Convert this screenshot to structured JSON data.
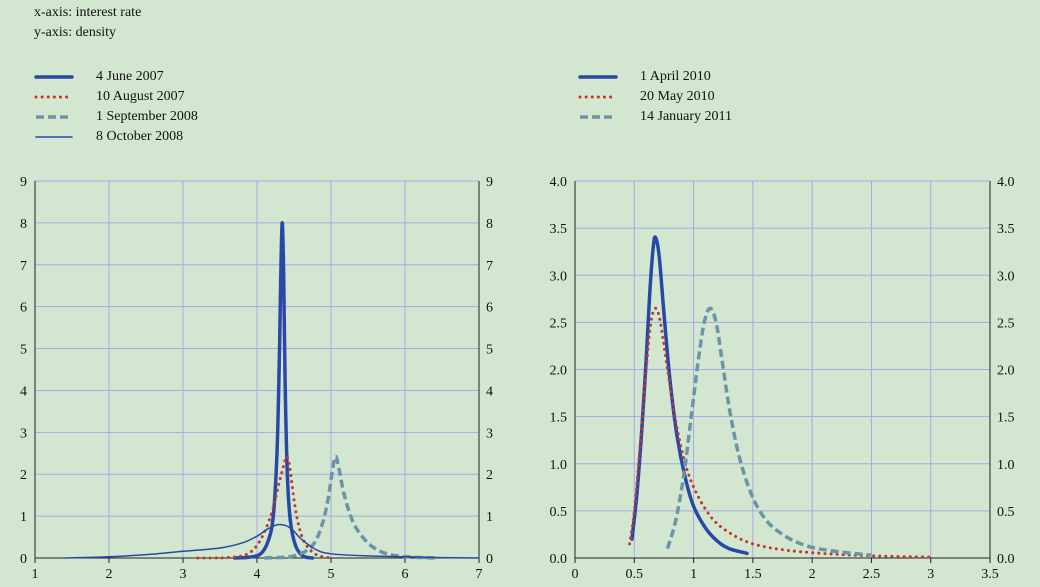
{
  "notes": {
    "x_axis": "x-axis: interest rate",
    "y_axis": "y-axis: density"
  },
  "colors": {
    "background": "#d3e7d0",
    "grid": "#a8a8e8",
    "solid_blue": "#2848a8",
    "dotted_red": "#c0392b",
    "dashed_teal": "#6a94a8"
  },
  "chart_data": [
    {
      "type": "line",
      "title": "",
      "xlabel": "interest rate",
      "ylabel": "density",
      "xlim": [
        1,
        7
      ],
      "ylim": [
        0,
        9
      ],
      "x_ticks": [
        1,
        2,
        3,
        4,
        5,
        6,
        7
      ],
      "y_ticks": [
        0,
        1,
        2,
        3,
        4,
        5,
        6,
        7,
        8,
        9
      ],
      "y_tick_labels": [
        "0",
        "1",
        "2",
        "3",
        "4",
        "5",
        "6",
        "7",
        "8",
        "9"
      ],
      "grid": true,
      "legend_position": "top-left",
      "series": [
        {
          "name": "4 June 2007",
          "style": "solid-thick",
          "color": "#2848a8",
          "points": [
            [
              3.7,
              0
            ],
            [
              3.9,
              0.02
            ],
            [
              4.05,
              0.1
            ],
            [
              4.15,
              0.4
            ],
            [
              4.22,
              1.0
            ],
            [
              4.27,
              2.5
            ],
            [
              4.3,
              4.6
            ],
            [
              4.32,
              6.6
            ],
            [
              4.34,
              8.0
            ],
            [
              4.36,
              6.8
            ],
            [
              4.38,
              4.2
            ],
            [
              4.41,
              2.0
            ],
            [
              4.45,
              0.9
            ],
            [
              4.52,
              0.3
            ],
            [
              4.62,
              0.05
            ],
            [
              4.75,
              0
            ]
          ]
        },
        {
          "name": "10 August 2007",
          "style": "dotted",
          "color": "#c0392b",
          "points": [
            [
              3.2,
              0
            ],
            [
              3.6,
              0.01
            ],
            [
              3.85,
              0.08
            ],
            [
              4.0,
              0.3
            ],
            [
              4.12,
              0.7
            ],
            [
              4.22,
              1.2
            ],
            [
              4.3,
              1.8
            ],
            [
              4.36,
              2.2
            ],
            [
              4.4,
              2.42
            ],
            [
              4.44,
              2.2
            ],
            [
              4.5,
              1.4
            ],
            [
              4.56,
              0.8
            ],
            [
              4.65,
              0.35
            ],
            [
              4.8,
              0.08
            ],
            [
              5.0,
              0
            ]
          ]
        },
        {
          "name": "1 September 2008",
          "style": "dashed",
          "color": "#6a94a8",
          "points": [
            [
              4.1,
              0
            ],
            [
              4.5,
              0.05
            ],
            [
              4.75,
              0.3
            ],
            [
              4.88,
              0.8
            ],
            [
              4.96,
              1.4
            ],
            [
              5.02,
              2.1
            ],
            [
              5.06,
              2.42
            ],
            [
              5.1,
              2.2
            ],
            [
              5.18,
              1.5
            ],
            [
              5.3,
              0.85
            ],
            [
              5.45,
              0.45
            ],
            [
              5.6,
              0.22
            ],
            [
              5.8,
              0.08
            ],
            [
              6.1,
              0.02
            ],
            [
              6.4,
              0
            ]
          ]
        },
        {
          "name": "8 October 2008",
          "style": "solid-thin",
          "color": "#2848a8",
          "points": [
            [
              1.4,
              0
            ],
            [
              2.0,
              0.03
            ],
            [
              2.5,
              0.08
            ],
            [
              3.0,
              0.16
            ],
            [
              3.5,
              0.24
            ],
            [
              3.8,
              0.36
            ],
            [
              4.0,
              0.52
            ],
            [
              4.15,
              0.7
            ],
            [
              4.3,
              0.8
            ],
            [
              4.45,
              0.72
            ],
            [
              4.6,
              0.45
            ],
            [
              4.8,
              0.2
            ],
            [
              5.0,
              0.1
            ],
            [
              5.5,
              0.05
            ],
            [
              6.0,
              0.03
            ],
            [
              6.5,
              0.01
            ],
            [
              7.0,
              0
            ]
          ]
        }
      ]
    },
    {
      "type": "line",
      "title": "",
      "xlabel": "interest rate",
      "ylabel": "density",
      "xlim": [
        0,
        3.5
      ],
      "ylim": [
        0,
        4
      ],
      "x_ticks": [
        0,
        0.5,
        1,
        1.5,
        2,
        2.5,
        3,
        3.5
      ],
      "y_ticks": [
        0,
        0.5,
        1,
        1.5,
        2,
        2.5,
        3,
        3.5,
        4
      ],
      "y_tick_labels": [
        "0.0",
        "0.5",
        "1.0",
        "1.5",
        "2.0",
        "2.5",
        "3.0",
        "3.5",
        "4.0"
      ],
      "grid": true,
      "legend_position": "top-left",
      "series": [
        {
          "name": "1 April 2010",
          "style": "solid-thick",
          "color": "#2848a8",
          "points": [
            [
              0.48,
              0.2
            ],
            [
              0.52,
              0.65
            ],
            [
              0.56,
              1.3
            ],
            [
              0.6,
              2.1
            ],
            [
              0.63,
              2.8
            ],
            [
              0.66,
              3.3
            ],
            [
              0.68,
              3.4
            ],
            [
              0.71,
              3.2
            ],
            [
              0.75,
              2.6
            ],
            [
              0.8,
              1.9
            ],
            [
              0.86,
              1.3
            ],
            [
              0.93,
              0.85
            ],
            [
              1.0,
              0.55
            ],
            [
              1.1,
              0.32
            ],
            [
              1.2,
              0.18
            ],
            [
              1.3,
              0.1
            ],
            [
              1.45,
              0.05
            ]
          ]
        },
        {
          "name": "20 May 2010",
          "style": "dotted",
          "color": "#c0392b",
          "points": [
            [
              0.46,
              0.15
            ],
            [
              0.5,
              0.5
            ],
            [
              0.55,
              1.2
            ],
            [
              0.6,
              2.0
            ],
            [
              0.64,
              2.5
            ],
            [
              0.68,
              2.65
            ],
            [
              0.72,
              2.5
            ],
            [
              0.78,
              2.0
            ],
            [
              0.85,
              1.45
            ],
            [
              0.93,
              1.0
            ],
            [
              1.02,
              0.7
            ],
            [
              1.15,
              0.43
            ],
            [
              1.3,
              0.27
            ],
            [
              1.5,
              0.15
            ],
            [
              1.8,
              0.08
            ],
            [
              2.2,
              0.04
            ],
            [
              2.6,
              0.02
            ],
            [
              3.0,
              0.01
            ]
          ]
        },
        {
          "name": "14 January 2011",
          "style": "dashed",
          "color": "#6a94a8",
          "points": [
            [
              0.78,
              0.1
            ],
            [
              0.85,
              0.4
            ],
            [
              0.92,
              0.9
            ],
            [
              0.98,
              1.5
            ],
            [
              1.04,
              2.1
            ],
            [
              1.09,
              2.5
            ],
            [
              1.14,
              2.65
            ],
            [
              1.19,
              2.5
            ],
            [
              1.24,
              2.1
            ],
            [
              1.3,
              1.6
            ],
            [
              1.38,
              1.1
            ],
            [
              1.48,
              0.7
            ],
            [
              1.6,
              0.42
            ],
            [
              1.75,
              0.25
            ],
            [
              1.95,
              0.13
            ],
            [
              2.2,
              0.07
            ],
            [
              2.5,
              0.03
            ]
          ]
        }
      ]
    }
  ]
}
